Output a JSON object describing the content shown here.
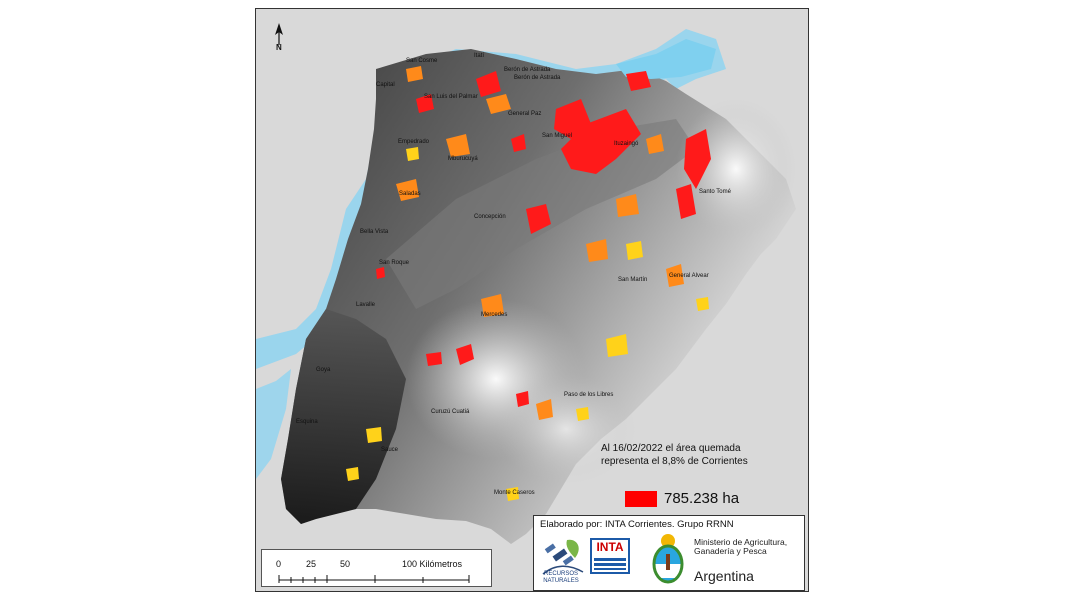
{
  "map": {
    "towns": [
      {
        "name": "Itatí"
      },
      {
        "name": "Berón de Astrada"
      },
      {
        "name": "San Cosme"
      },
      {
        "name": "Berón de Astrada"
      },
      {
        "name": "Capital"
      },
      {
        "name": "San Luis del Palmar"
      },
      {
        "name": "General Paz"
      },
      {
        "name": "San Miguel"
      },
      {
        "name": "Ituzaingó"
      },
      {
        "name": "Empedrado"
      },
      {
        "name": "Mburucuyá"
      },
      {
        "name": "Saladas"
      },
      {
        "name": "Santo Tomé"
      },
      {
        "name": "Concepción"
      },
      {
        "name": "Bella Vista"
      },
      {
        "name": "San Roque"
      },
      {
        "name": "San Martín"
      },
      {
        "name": "General Alvear"
      },
      {
        "name": "Lavalle"
      },
      {
        "name": "Mercedes"
      },
      {
        "name": "Goya"
      },
      {
        "name": "Paso de los Libres"
      },
      {
        "name": "Curuzú Cuatiá"
      },
      {
        "name": "Esquina"
      },
      {
        "name": "Sauce"
      },
      {
        "name": "Monte Caseros"
      }
    ],
    "north_label": "N",
    "burn_note_line1": "Al 16/02/2022 el área quemada",
    "burn_note_line2": "representa el 8,8% de Corrientes",
    "legend_value": "785.238 ha",
    "legend_color": "#ff0000",
    "scale": {
      "ticks": [
        "0",
        "25",
        "50",
        "100 Kilómetros"
      ]
    },
    "credit": {
      "text": "Elaborado por: INTA Corrientes. Grupo RRNN",
      "recursos_line1": "RECURSOS",
      "recursos_line2": "NATURALES",
      "inta": "INTA",
      "ministry_line1": "Ministerio de Agricultura,",
      "ministry_line2": "Ganadería y Pesca",
      "country": "Argentina"
    },
    "colors": {
      "water": "#8ed3f0",
      "burn_red": "#ff1a1a",
      "burn_orange": "#ff8a1a",
      "burn_yellow": "#ffd21a",
      "land_outside": "#d9d9d9"
    }
  }
}
